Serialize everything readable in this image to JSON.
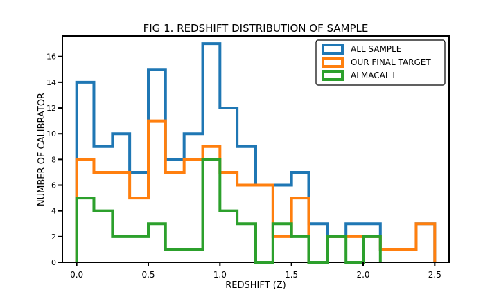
{
  "chart_data": {
    "type": "histogram-step",
    "title": "FIG 1. REDSHIFT DISTRIBUTION OF SAMPLE",
    "xlabel": "REDSHIFT (Z)",
    "ylabel": "NUMBER OF CALIBRATOR",
    "xlim": [
      -0.1,
      2.6
    ],
    "ylim": [
      0,
      17.6
    ],
    "xticks": [
      0.0,
      0.5,
      1.0,
      1.5,
      2.0,
      2.5
    ],
    "xtick_labels": [
      "0.0",
      "0.5",
      "1.0",
      "1.5",
      "2.0",
      "2.5"
    ],
    "yticks": [
      0,
      2,
      4,
      6,
      8,
      10,
      12,
      14,
      16
    ],
    "ytick_labels": [
      "0",
      "2",
      "4",
      "6",
      "8",
      "10",
      "12",
      "14",
      "16"
    ],
    "legend_position": "top-right",
    "grid": false,
    "series": [
      {
        "name": "ALL SAMPLE",
        "color": "#1f77b4",
        "edges": [
          0.0,
          0.12,
          0.25,
          0.37,
          0.5,
          0.62,
          0.75,
          0.88,
          1.0,
          1.12,
          1.25,
          1.37,
          1.5,
          1.62,
          1.75,
          1.88,
          2.0,
          2.12,
          2.25,
          2.37,
          2.5
        ],
        "values": [
          14,
          9,
          10,
          7,
          15,
          8,
          10,
          17,
          12,
          9,
          6,
          6,
          7,
          3,
          2,
          3,
          3,
          1,
          1,
          3
        ]
      },
      {
        "name": "OUR FINAL TARGET",
        "color": "#ff7f0e",
        "edges": [
          0.0,
          0.12,
          0.25,
          0.37,
          0.5,
          0.62,
          0.75,
          0.88,
          1.0,
          1.12,
          1.25,
          1.37,
          1.5,
          1.62,
          1.75,
          1.88,
          2.0,
          2.12,
          2.25,
          2.37,
          2.5
        ],
        "values": [
          8,
          7,
          7,
          5,
          11,
          7,
          8,
          9,
          7,
          6,
          6,
          2,
          5,
          0,
          2,
          2,
          2,
          1,
          1,
          3
        ]
      },
      {
        "name": "ALMACAL I",
        "color": "#2ca02c",
        "edges": [
          0.0,
          0.12,
          0.25,
          0.37,
          0.5,
          0.62,
          0.75,
          0.88,
          1.0,
          1.12,
          1.25,
          1.37,
          1.5,
          1.62,
          1.75,
          1.88,
          2.0,
          2.12
        ],
        "values": [
          5,
          4,
          2,
          2,
          3,
          1,
          1,
          8,
          4,
          3,
          0,
          3,
          2,
          0,
          2,
          0,
          2
        ]
      }
    ]
  }
}
